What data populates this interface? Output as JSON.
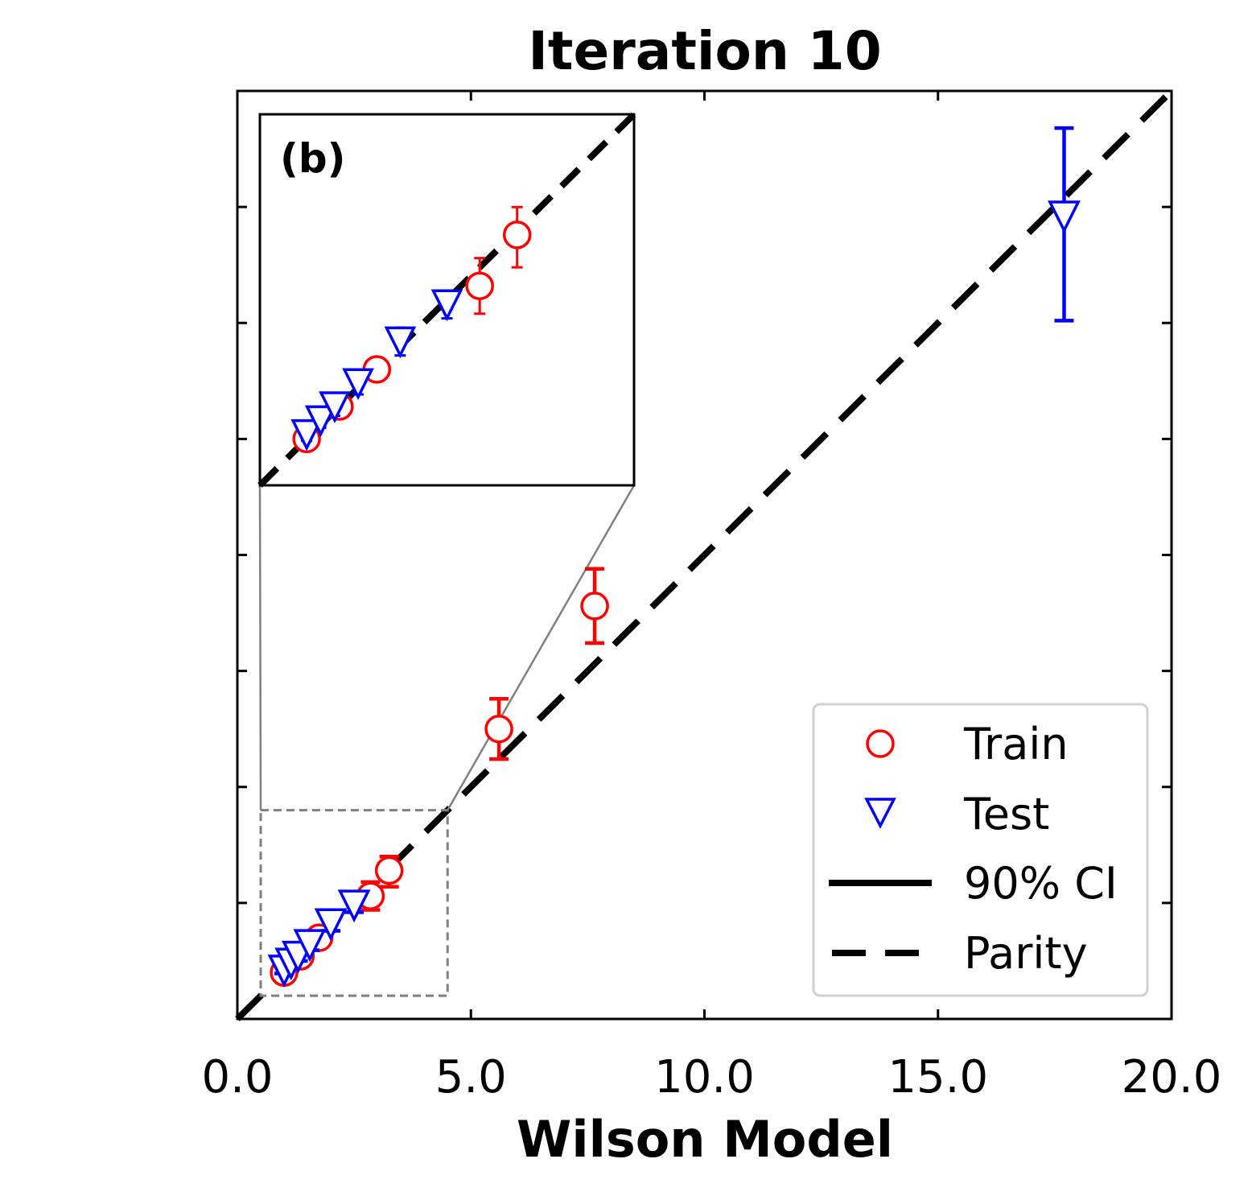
{
  "chart_data": {
    "type": "scatter",
    "title": "Iteration 10",
    "xlabel": "Wilson Model",
    "ylabel": "",
    "xlim": [
      0,
      20
    ],
    "ylim": [
      0,
      20
    ],
    "xticks": [
      0,
      5,
      10,
      15,
      20
    ],
    "xtick_labels": [
      "0.0",
      "5.0",
      "10.0",
      "15.0",
      "20.0"
    ],
    "yticks": [
      2.5,
      5,
      7.5,
      10,
      12.5,
      15,
      17.5
    ],
    "colors": {
      "train": "#ff0000",
      "test": "#0000ff",
      "parity": "#000000",
      "zoom": "#808080"
    },
    "series": [
      {
        "name": "Train",
        "marker": "circle",
        "points": [
          {
            "x": 1.0,
            "y": 1.0,
            "lo": 0.97,
            "hi": 1.05
          },
          {
            "x": 1.35,
            "y": 1.35,
            "lo": 1.28,
            "hi": 1.42
          },
          {
            "x": 1.75,
            "y": 1.75,
            "lo": 1.65,
            "hi": 1.85
          },
          {
            "x": 2.85,
            "y": 2.65,
            "lo": 2.35,
            "hi": 2.95
          },
          {
            "x": 3.25,
            "y": 3.2,
            "lo": 2.85,
            "hi": 3.5
          },
          {
            "x": 5.6,
            "y": 6.25,
            "lo": 5.6,
            "hi": 6.9
          },
          {
            "x": 7.65,
            "y": 8.9,
            "lo": 8.1,
            "hi": 9.7
          }
        ]
      },
      {
        "name": "Test",
        "marker": "triangle-down",
        "points": [
          {
            "x": 1.0,
            "y": 1.05,
            "lo": 0.98,
            "hi": 1.12
          },
          {
            "x": 1.15,
            "y": 1.2,
            "lo": 1.12,
            "hi": 1.28
          },
          {
            "x": 1.3,
            "y": 1.35,
            "lo": 1.25,
            "hi": 1.45
          },
          {
            "x": 1.55,
            "y": 1.6,
            "lo": 1.48,
            "hi": 1.72
          },
          {
            "x": 2.0,
            "y": 2.05,
            "lo": 1.9,
            "hi": 2.2
          },
          {
            "x": 2.5,
            "y": 2.45,
            "lo": 2.3,
            "hi": 2.6
          },
          {
            "x": 17.7,
            "y": 17.3,
            "lo": 15.05,
            "hi": 19.2
          }
        ]
      }
    ],
    "parity": {
      "from": [
        0,
        0
      ],
      "to": [
        20,
        20
      ]
    },
    "inset": {
      "label": "(b)",
      "zoom_xlim": [
        0.5,
        4.5
      ],
      "zoom_ylim": [
        0.5,
        4.5
      ],
      "location": "upper-left"
    },
    "legend": {
      "location": "lower-right",
      "entries": [
        "Train",
        "Test",
        "90% CI",
        "Parity"
      ]
    }
  }
}
